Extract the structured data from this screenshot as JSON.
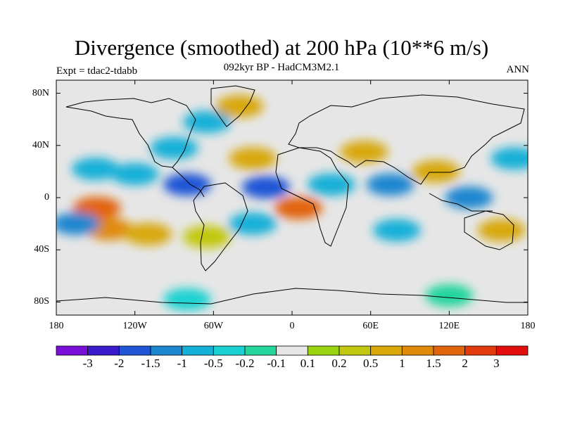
{
  "header": {
    "title": "Divergence (smoothed) at 200 hPa (10**6 m/s)",
    "subtitle": "092kyr BP - HadCM3M2.1",
    "left_label": "Expt = tdac2-tdabb",
    "right_label": "ANN"
  },
  "map": {
    "projection": "cylindrical equidistant",
    "lon_range": [
      -180,
      180
    ],
    "lat_range": [
      -90,
      90
    ],
    "lat_ticks": [
      {
        "lat": 80,
        "label": "80N"
      },
      {
        "lat": 40,
        "label": "40N"
      },
      {
        "lat": 0,
        "label": "0"
      },
      {
        "lat": -40,
        "label": "40S"
      },
      {
        "lat": -80,
        "label": "80S"
      }
    ],
    "lon_ticks": [
      {
        "lon": -180,
        "label": "180"
      },
      {
        "lon": -120,
        "label": "120W"
      },
      {
        "lon": -60,
        "label": "60W"
      },
      {
        "lon": 0,
        "label": "0"
      },
      {
        "lon": 60,
        "label": "60E"
      },
      {
        "lon": 120,
        "label": "120E"
      },
      {
        "lon": 180,
        "label": "180"
      }
    ],
    "background_color": "#e6e6e6",
    "coastline_color": "#000000"
  },
  "colorbar": {
    "colors": [
      "#7a0fd8",
      "#3a1ccc",
      "#1f55d6",
      "#1a86d0",
      "#13b0d8",
      "#1ad2d2",
      "#22d69c",
      "#e6e6e6",
      "#9ad40e",
      "#c2c810",
      "#d8a808",
      "#e08a0a",
      "#e2640c",
      "#e23a0c",
      "#e20e0e"
    ],
    "labels": [
      "-3",
      "-2",
      "-1.5",
      "-1",
      "-0.5",
      "-0.2",
      "-0.1",
      "0.1",
      "0.2",
      "0.5",
      "1",
      "1.5",
      "2",
      "3"
    ]
  },
  "features": [
    {
      "lon": -149,
      "lat": -8,
      "level": 12
    },
    {
      "lon": -140,
      "lat": -24,
      "level": 11
    },
    {
      "lon": -165,
      "lat": -20,
      "level": 3
    },
    {
      "lon": -110,
      "lat": -28,
      "level": 10
    },
    {
      "lon": -120,
      "lat": 18,
      "level": 4
    },
    {
      "lon": -150,
      "lat": 22,
      "level": 4
    },
    {
      "lon": -80,
      "lat": 10,
      "level": 2
    },
    {
      "lon": -90,
      "lat": 38,
      "level": 4
    },
    {
      "lon": -65,
      "lat": 58,
      "level": 4
    },
    {
      "lon": -40,
      "lat": 70,
      "level": 10
    },
    {
      "lon": -30,
      "lat": 30,
      "level": 10
    },
    {
      "lon": -20,
      "lat": 8,
      "level": 2
    },
    {
      "lon": 5,
      "lat": -8,
      "level": 12
    },
    {
      "lon": -30,
      "lat": -20,
      "level": 4
    },
    {
      "lon": -65,
      "lat": -30,
      "level": 9
    },
    {
      "lon": 30,
      "lat": 10,
      "level": 4
    },
    {
      "lon": 55,
      "lat": 35,
      "level": 10
    },
    {
      "lon": 75,
      "lat": 10,
      "level": 3
    },
    {
      "lon": 110,
      "lat": 20,
      "level": 10
    },
    {
      "lon": 135,
      "lat": 0,
      "level": 3
    },
    {
      "lon": 170,
      "lat": 30,
      "level": 4
    },
    {
      "lon": 160,
      "lat": -25,
      "level": 10
    },
    {
      "lon": 80,
      "lat": -25,
      "level": 4
    },
    {
      "lon": -80,
      "lat": -78,
      "level": 5
    },
    {
      "lon": 120,
      "lat": -75,
      "level": 6
    }
  ]
}
